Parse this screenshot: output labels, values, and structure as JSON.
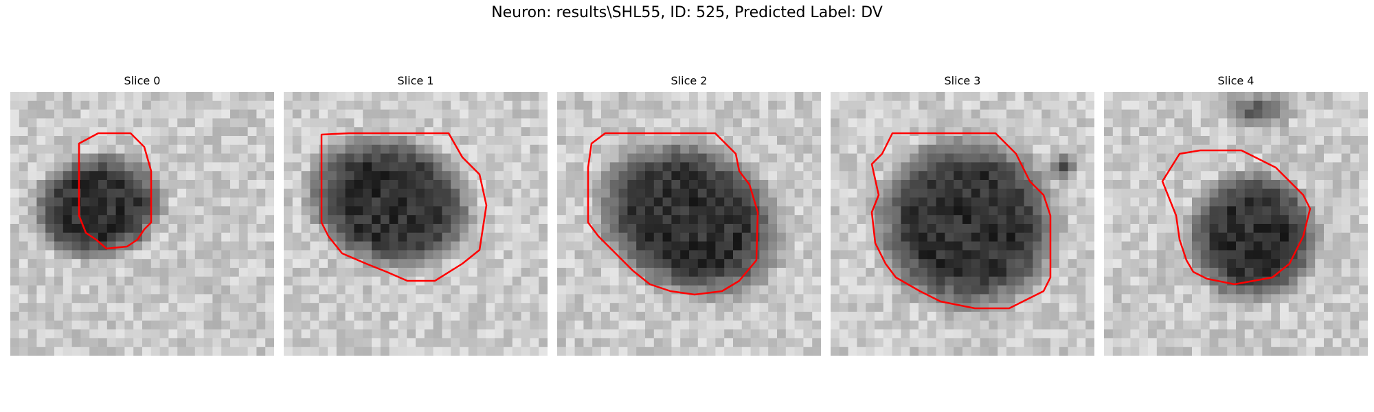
{
  "figure": {
    "title": "Neuron: results\\SHL55, ID: 525, Predicted Label: DV"
  },
  "colors": {
    "contour": "#ff0000",
    "background": "#ffffff"
  },
  "panels": [
    {
      "title": "Slice 0"
    },
    {
      "title": "Slice 1"
    },
    {
      "title": "Slice 2"
    },
    {
      "title": "Slice 3"
    },
    {
      "title": "Slice 4"
    }
  ]
}
